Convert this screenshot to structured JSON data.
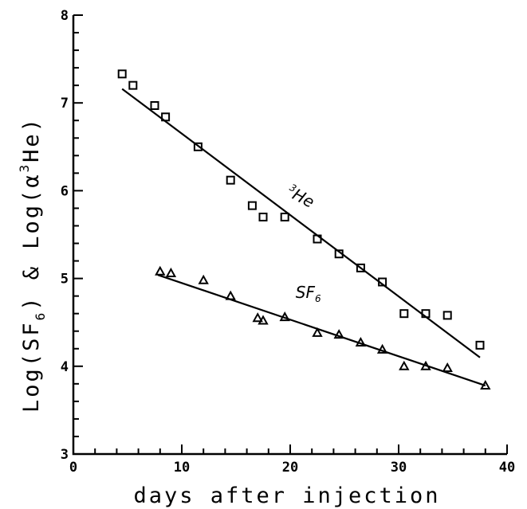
{
  "chart_data": {
    "type": "scatter",
    "xlabel": "days after injection",
    "ylabel": "Log(SF6) & Log(α3He)",
    "ylabel_parts": {
      "a": "Log(SF",
      "a_sub": "6",
      "b": ") & Log(",
      "alpha": "α",
      "sup": "3",
      "c": "He)"
    },
    "xlim": [
      0,
      40
    ],
    "ylim": [
      3,
      8
    ],
    "x_ticks": [
      "0",
      "10",
      "20",
      "30",
      "40"
    ],
    "y_ticks": [
      "3",
      "4",
      "5",
      "6",
      "7",
      "8"
    ],
    "grid": false,
    "series": [
      {
        "marker": "square",
        "points": [
          [
            4.5,
            7.33
          ],
          [
            5.5,
            7.2
          ],
          [
            7.5,
            6.97
          ],
          [
            8.5,
            6.84
          ],
          [
            11.5,
            6.5
          ],
          [
            14.5,
            6.12
          ],
          [
            16.5,
            5.83
          ],
          [
            17.5,
            5.7
          ],
          [
            19.5,
            5.7
          ],
          [
            22.5,
            5.45
          ],
          [
            24.5,
            5.28
          ],
          [
            26.5,
            5.12
          ],
          [
            28.5,
            4.96
          ],
          [
            30.5,
            4.6
          ],
          [
            32.5,
            4.6
          ],
          [
            34.5,
            4.58
          ],
          [
            37.5,
            4.24
          ]
        ],
        "fit": [
          [
            4.5,
            7.16
          ],
          [
            37.5,
            4.1
          ]
        ]
      },
      {
        "marker": "triangle",
        "points": [
          [
            8,
            5.08
          ],
          [
            9,
            5.06
          ],
          [
            12,
            4.98
          ],
          [
            14.5,
            4.8
          ],
          [
            17,
            4.55
          ],
          [
            17.5,
            4.52
          ],
          [
            19.5,
            4.56
          ],
          [
            22.5,
            4.38
          ],
          [
            24.5,
            4.36
          ],
          [
            26.5,
            4.27
          ],
          [
            28.5,
            4.19
          ],
          [
            30.5,
            4.0
          ],
          [
            32.5,
            4.0
          ],
          [
            34.5,
            3.98
          ],
          [
            38,
            3.78
          ]
        ],
        "fit": [
          [
            7.8,
            5.04
          ],
          [
            38,
            3.78
          ]
        ]
      }
    ],
    "annotations": [
      {
        "text": "He",
        "sup": "3",
        "x": 19.6,
        "y": 5.95
      },
      {
        "text": "SF",
        "sub": "6",
        "x": 20.5,
        "y": 4.78
      }
    ]
  }
}
